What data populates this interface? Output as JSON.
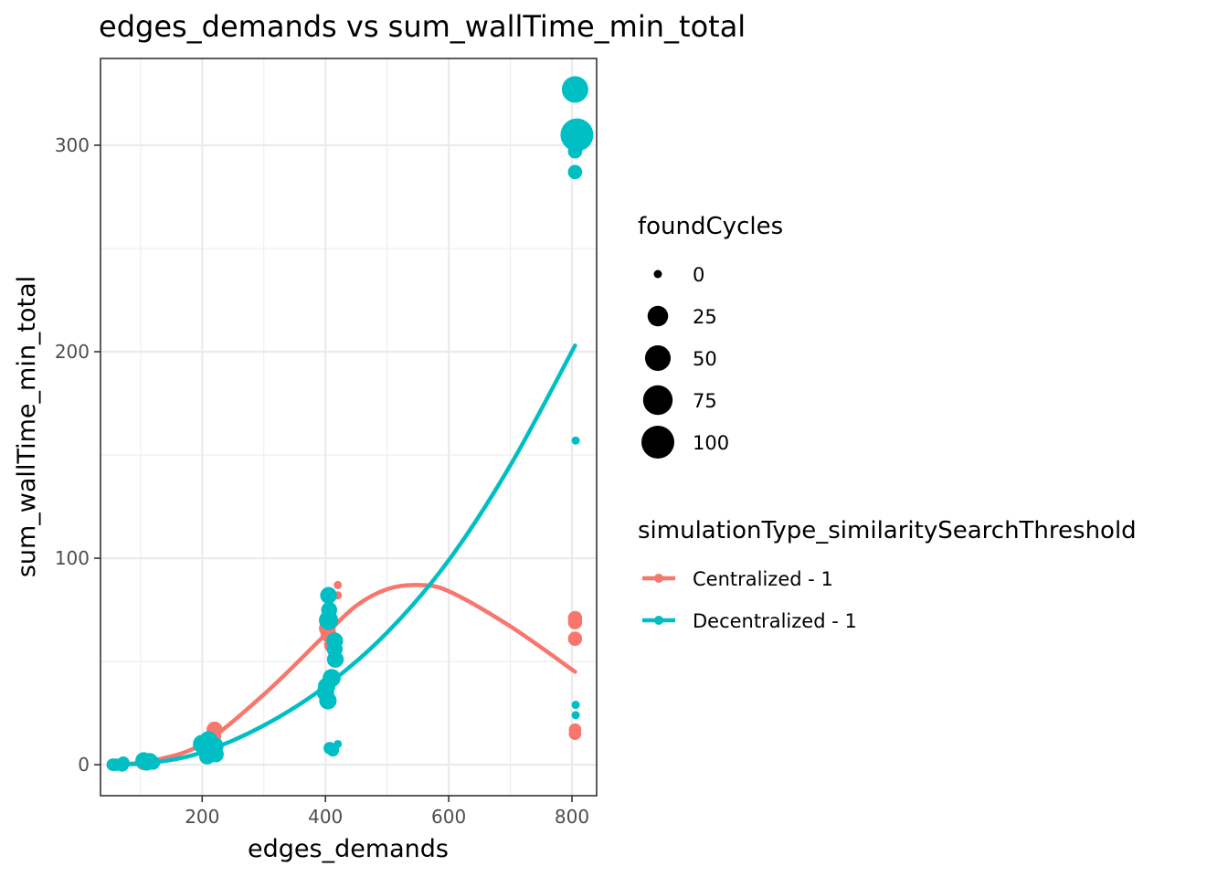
{
  "chart_data": {
    "type": "scatter",
    "title": "edges_demands  vs  sum_wallTime_min_total",
    "xlabel": "edges_demands",
    "ylabel": "sum_wallTime_min_total",
    "xlim": [
      35,
      840
    ],
    "ylim": [
      -15,
      342
    ],
    "x_ticks": [
      200,
      400,
      600,
      800
    ],
    "y_ticks": [
      0,
      100,
      200,
      300
    ],
    "x_tick_labels": [
      "200",
      "400",
      "600",
      "800"
    ],
    "y_tick_labels": [
      "0",
      "100",
      "200",
      "300"
    ],
    "grid": true,
    "size_legend": {
      "title": "foundCycles",
      "entries": [
        {
          "label": "0",
          "value": 0
        },
        {
          "label": "25",
          "value": 25
        },
        {
          "label": "50",
          "value": 50
        },
        {
          "label": "75",
          "value": 75
        },
        {
          "label": "100",
          "value": 100
        }
      ]
    },
    "color_legend": {
      "title": "simulationType_similaritySearchThreshold",
      "placement": "right"
    },
    "series": [
      {
        "name": "Centralized - 1",
        "color": "#F8766D",
        "points": [
          {
            "x": 55,
            "y": 0,
            "size": 3
          },
          {
            "x": 70,
            "y": 0,
            "size": 3
          },
          {
            "x": 105,
            "y": 1,
            "size": 8
          },
          {
            "x": 115,
            "y": 1,
            "size": 6
          },
          {
            "x": 210,
            "y": 9,
            "size": 15
          },
          {
            "x": 218,
            "y": 14,
            "size": 10
          },
          {
            "x": 220,
            "y": 17,
            "size": 10
          },
          {
            "x": 403,
            "y": 66,
            "size": 12
          },
          {
            "x": 405,
            "y": 63,
            "size": 10
          },
          {
            "x": 410,
            "y": 58,
            "size": 8
          },
          {
            "x": 415,
            "y": 60,
            "size": 6
          },
          {
            "x": 420,
            "y": 87,
            "size": 0
          },
          {
            "x": 420,
            "y": 82,
            "size": 0
          },
          {
            "x": 805,
            "y": 71,
            "size": 6
          },
          {
            "x": 805,
            "y": 69,
            "size": 6
          },
          {
            "x": 805,
            "y": 61,
            "size": 6
          },
          {
            "x": 805,
            "y": 17,
            "size": 3
          },
          {
            "x": 805,
            "y": 15,
            "size": 3
          }
        ],
        "trend": [
          {
            "x": 60,
            "y": 0
          },
          {
            "x": 120,
            "y": 2
          },
          {
            "x": 200,
            "y": 10
          },
          {
            "x": 300,
            "y": 34
          },
          {
            "x": 400,
            "y": 63
          },
          {
            "x": 450,
            "y": 77
          },
          {
            "x": 500,
            "y": 85
          },
          {
            "x": 550,
            "y": 87
          },
          {
            "x": 600,
            "y": 84
          },
          {
            "x": 700,
            "y": 67
          },
          {
            "x": 805,
            "y": 45
          }
        ]
      },
      {
        "name": "Decentralized - 1",
        "color": "#00BFC4",
        "points": [
          {
            "x": 55,
            "y": 0,
            "size": 3
          },
          {
            "x": 60,
            "y": 0,
            "size": 3
          },
          {
            "x": 70,
            "y": 0,
            "size": 5
          },
          {
            "x": 72,
            "y": 1,
            "size": 3
          },
          {
            "x": 105,
            "y": 2,
            "size": 12
          },
          {
            "x": 110,
            "y": 1,
            "size": 10
          },
          {
            "x": 115,
            "y": 2,
            "size": 8
          },
          {
            "x": 120,
            "y": 1,
            "size": 6
          },
          {
            "x": 200,
            "y": 10,
            "size": 18
          },
          {
            "x": 205,
            "y": 8,
            "size": 14
          },
          {
            "x": 208,
            "y": 4,
            "size": 10
          },
          {
            "x": 210,
            "y": 12,
            "size": 14
          },
          {
            "x": 215,
            "y": 6,
            "size": 12
          },
          {
            "x": 220,
            "y": 9,
            "size": 16
          },
          {
            "x": 222,
            "y": 5,
            "size": 10
          },
          {
            "x": 400,
            "y": 35,
            "size": 14
          },
          {
            "x": 402,
            "y": 38,
            "size": 14
          },
          {
            "x": 404,
            "y": 31,
            "size": 14
          },
          {
            "x": 405,
            "y": 82,
            "size": 12
          },
          {
            "x": 405,
            "y": 70,
            "size": 20
          },
          {
            "x": 406,
            "y": 75,
            "size": 10
          },
          {
            "x": 407,
            "y": 8,
            "size": 3
          },
          {
            "x": 410,
            "y": 42,
            "size": 16
          },
          {
            "x": 412,
            "y": 7,
            "size": 3
          },
          {
            "x": 415,
            "y": 60,
            "size": 12
          },
          {
            "x": 415,
            "y": 56,
            "size": 10
          },
          {
            "x": 416,
            "y": 51,
            "size": 12
          },
          {
            "x": 420,
            "y": 10,
            "size": 0
          },
          {
            "x": 805,
            "y": 327,
            "size": 55
          },
          {
            "x": 808,
            "y": 305,
            "size": 100
          },
          {
            "x": 805,
            "y": 297,
            "size": 6
          },
          {
            "x": 805,
            "y": 287,
            "size": 6
          },
          {
            "x": 806,
            "y": 157,
            "size": 0
          },
          {
            "x": 806,
            "y": 29,
            "size": 0
          },
          {
            "x": 806,
            "y": 24,
            "size": 0
          }
        ],
        "trend": [
          {
            "x": 60,
            "y": 0
          },
          {
            "x": 120,
            "y": 1
          },
          {
            "x": 200,
            "y": 6
          },
          {
            "x": 300,
            "y": 19
          },
          {
            "x": 400,
            "y": 38
          },
          {
            "x": 500,
            "y": 64
          },
          {
            "x": 600,
            "y": 99
          },
          {
            "x": 700,
            "y": 145
          },
          {
            "x": 805,
            "y": 203
          }
        ]
      }
    ]
  }
}
